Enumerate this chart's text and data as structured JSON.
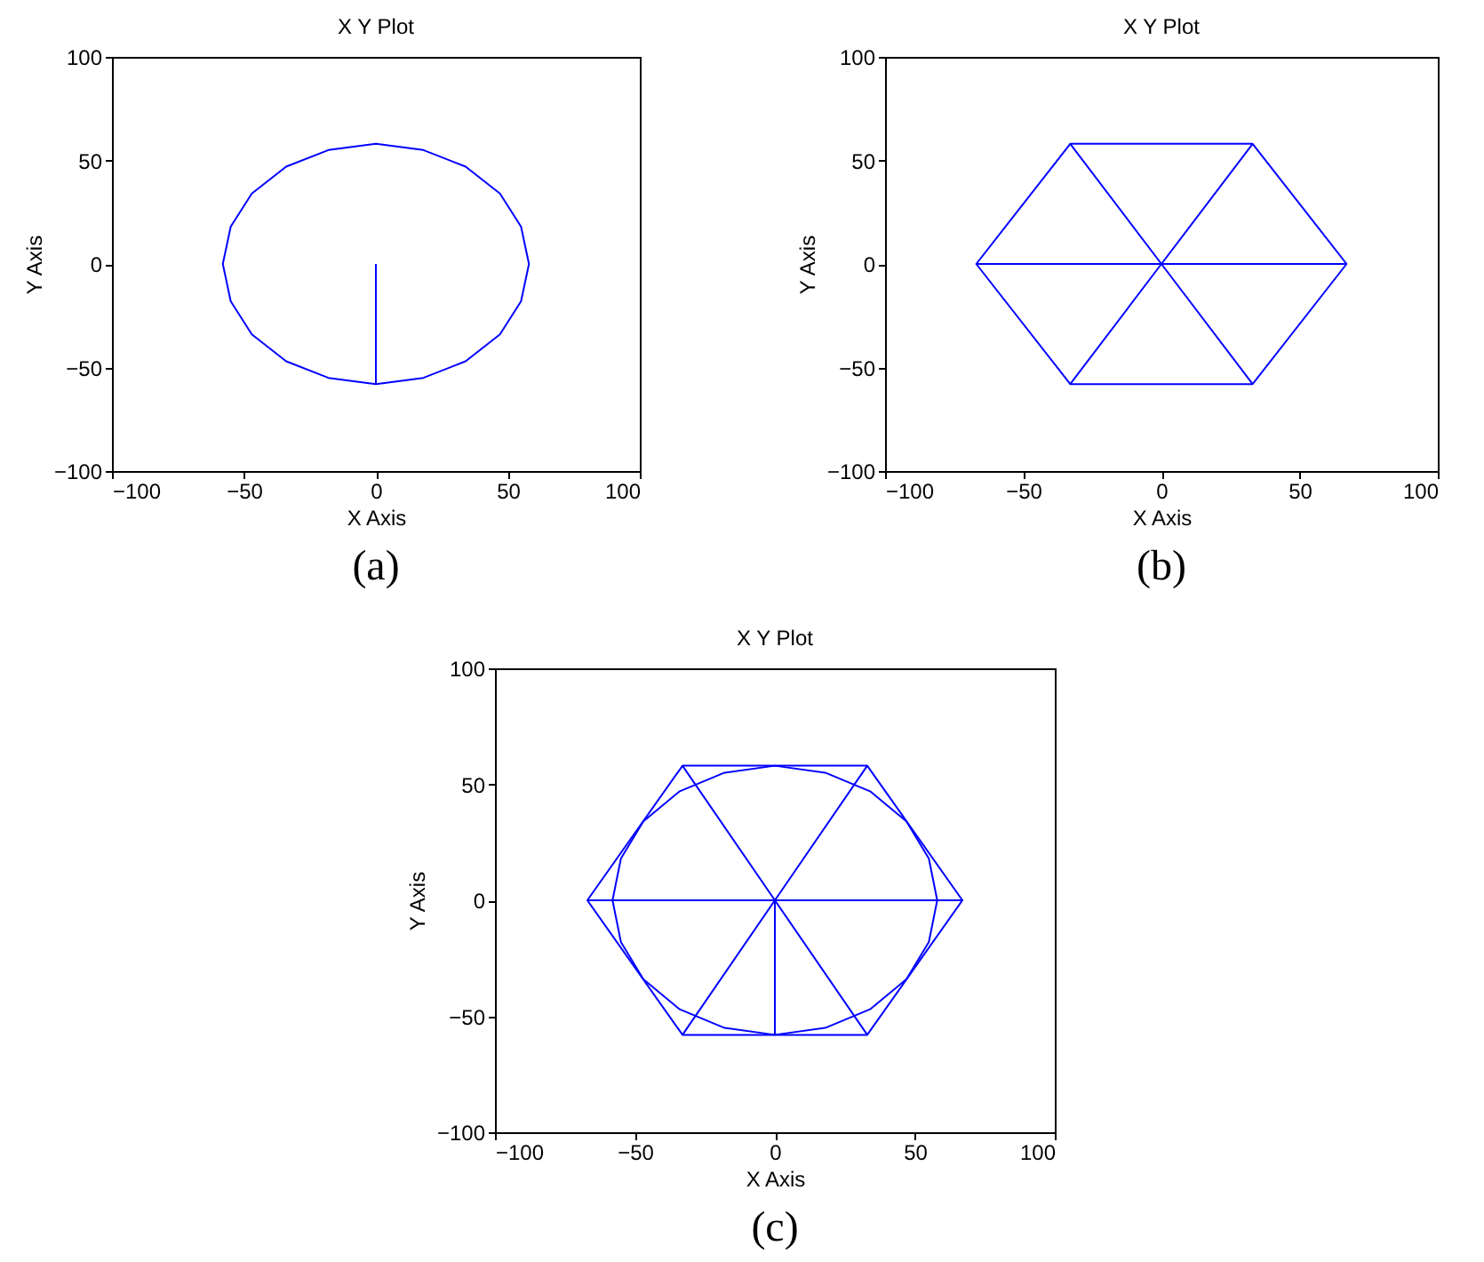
{
  "chart_data": [
    {
      "type": "line",
      "title": "X Y Plot",
      "xlabel": "X Axis",
      "ylabel": "Y Axis",
      "xlim": [
        -100,
        100
      ],
      "ylim": [
        -100,
        100
      ],
      "xticks": [
        -100,
        -50,
        0,
        50,
        100
      ],
      "yticks": [
        -100,
        -50,
        0,
        50,
        100
      ],
      "grid": false,
      "annotations": [
        "(a)"
      ],
      "series": [
        {
          "color": "#0000ff",
          "x": [
            0,
            0,
            18,
            34,
            47,
            55,
            58,
            55,
            47,
            34,
            18,
            0,
            -18,
            -34,
            -47,
            -55,
            -58,
            -55,
            -47,
            -34,
            -18,
            0
          ],
          "values": [
            0,
            -58,
            -55,
            -47,
            -34,
            -18,
            0,
            18,
            34,
            47,
            55,
            58,
            55,
            47,
            34,
            18,
            0,
            -18,
            -34,
            -47,
            -55,
            -58
          ]
        }
      ]
    },
    {
      "type": "line",
      "title": "X Y Plot",
      "xlabel": "X Axis",
      "ylabel": "Y Axis",
      "xlim": [
        -100,
        100
      ],
      "ylim": [
        -100,
        100
      ],
      "xticks": [
        -100,
        -50,
        0,
        50,
        100
      ],
      "yticks": [
        -100,
        -50,
        0,
        50,
        100
      ],
      "grid": false,
      "annotations": [
        "(b)"
      ],
      "series": [
        {
          "color": "#0000ff",
          "x": [
            -67,
            0,
            67,
            33,
            -33,
            -67,
            -33,
            33,
            67
          ],
          "values": [
            0,
            0,
            0,
            58,
            58,
            0,
            -58,
            -58,
            0
          ]
        },
        {
          "color": "#0000ff",
          "x": [
            33,
            0,
            33
          ],
          "values": [
            58,
            0,
            -58
          ]
        },
        {
          "color": "#0000ff",
          "x": [
            -33,
            0,
            -33
          ],
          "values": [
            58,
            0,
            -58
          ]
        }
      ]
    },
    {
      "type": "line",
      "title": "X Y Plot",
      "xlabel": "X Axis",
      "ylabel": "Y Axis",
      "xlim": [
        -100,
        100
      ],
      "ylim": [
        -100,
        100
      ],
      "xticks": [
        -100,
        -50,
        0,
        50,
        100
      ],
      "yticks": [
        -100,
        -50,
        0,
        50,
        100
      ],
      "grid": false,
      "annotations": [
        "(c)"
      ],
      "series": [
        {
          "color": "#0000ff",
          "x": [
            0,
            0,
            18,
            34,
            47,
            55,
            58,
            55,
            47,
            34,
            18,
            0,
            -18,
            -34,
            -47,
            -55,
            -58,
            -55,
            -47,
            -34,
            -18,
            0
          ],
          "values": [
            0,
            -58,
            -55,
            -47,
            -34,
            -18,
            0,
            18,
            34,
            47,
            55,
            58,
            55,
            47,
            34,
            18,
            0,
            -18,
            -34,
            -47,
            -55,
            -58
          ]
        },
        {
          "color": "#0000ff",
          "x": [
            -67,
            0,
            67,
            33,
            -33,
            -67,
            -33,
            33,
            67
          ],
          "values": [
            0,
            0,
            0,
            58,
            58,
            0,
            -58,
            -58,
            0
          ]
        },
        {
          "color": "#0000ff",
          "x": [
            33,
            0,
            33
          ],
          "values": [
            58,
            0,
            -58
          ]
        },
        {
          "color": "#0000ff",
          "x": [
            -33,
            0,
            -33
          ],
          "values": [
            58,
            0,
            -58
          ]
        }
      ]
    }
  ]
}
